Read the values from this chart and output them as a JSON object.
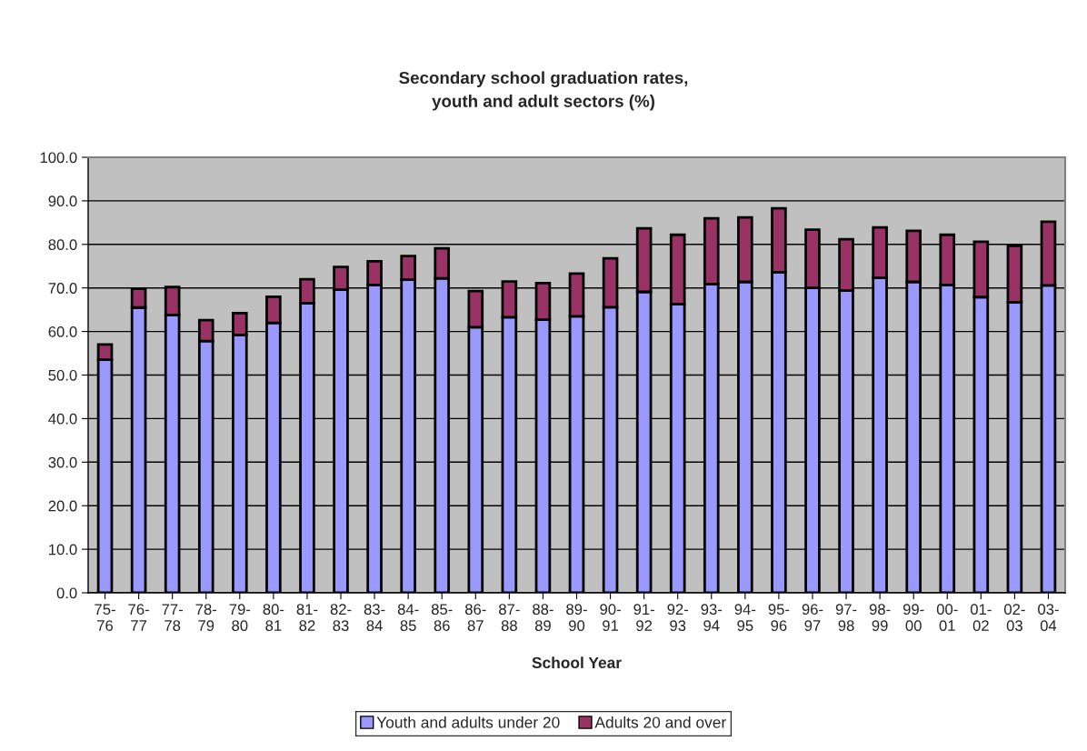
{
  "chart_data": {
    "type": "bar",
    "title": "Secondary school graduation rates,\nyouth and adult sectors (%)",
    "xlabel": "School Year",
    "categories": [
      "75-\n76",
      "76-\n77",
      "77-\n78",
      "78-\n79",
      "79-\n80",
      "80-\n81",
      "81-\n82",
      "82-\n83",
      "83-\n84",
      "84-\n85",
      "85-\n86",
      "86-\n87",
      "87-\n88",
      "88-\n89",
      "89-\n90",
      "90-\n91",
      "91-\n92",
      "92-\n93",
      "93-\n94",
      "94-\n95",
      "95-\n96",
      "96-\n97",
      "97-\n98",
      "98-\n99",
      "99-\n00",
      "00-\n01",
      "01-\n02",
      "02-\n03",
      "03-\n04"
    ],
    "stacked": true,
    "series": [
      {
        "name": "Youth and adults under 20",
        "color": "#9999ff",
        "values": [
          53.5,
          65.5,
          63.8,
          57.8,
          59.2,
          62.0,
          66.5,
          69.6,
          70.7,
          71.9,
          72.2,
          61.0,
          63.3,
          62.7,
          63.5,
          65.6,
          69.1,
          66.3,
          70.9,
          71.4,
          73.6,
          70.0,
          69.4,
          72.3,
          71.4,
          70.7,
          67.9,
          66.7,
          70.6
        ]
      },
      {
        "name": "Adults 20 and over",
        "color": "#993366",
        "values": [
          3.5,
          4.3,
          6.4,
          4.8,
          5.0,
          6.0,
          5.5,
          5.2,
          5.4,
          5.4,
          6.9,
          8.3,
          8.2,
          8.4,
          9.8,
          11.2,
          14.6,
          15.9,
          15.1,
          14.8,
          14.7,
          13.4,
          11.8,
          11.6,
          11.7,
          11.5,
          12.7,
          13.0,
          14.6
        ]
      }
    ],
    "ylim": [
      0,
      100
    ],
    "yticks": [
      {
        "value": 0,
        "label": "0.0"
      },
      {
        "value": 10,
        "label": "10.0"
      },
      {
        "value": 20,
        "label": "20.0"
      },
      {
        "value": 30,
        "label": "30.0"
      },
      {
        "value": 40,
        "label": "40.0"
      },
      {
        "value": 50,
        "label": "50.0"
      },
      {
        "value": 60,
        "label": "60.0"
      },
      {
        "value": 70,
        "label": "70.0"
      },
      {
        "value": 80,
        "label": "80.0"
      },
      {
        "value": 90,
        "label": "90.0"
      },
      {
        "value": 100,
        "label": "100.0"
      }
    ],
    "grid": "y",
    "legend": "bottom"
  }
}
